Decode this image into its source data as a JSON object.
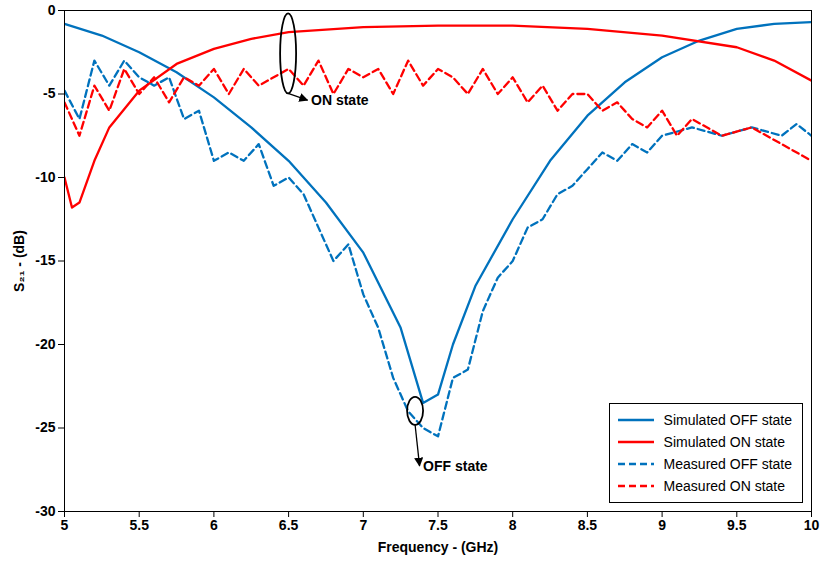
{
  "chart_data": {
    "type": "line",
    "xlabel": "Frequency - (GHz)",
    "ylabel": "S₂₁ - (dB)",
    "xlim": [
      5,
      10
    ],
    "xticks": [
      5,
      5.5,
      6,
      6.5,
      7,
      7.5,
      8,
      8.5,
      9,
      9.5,
      10
    ],
    "ylim": [
      -30,
      0
    ],
    "yticks": [
      -30,
      -25,
      -20,
      -15,
      -10,
      -5,
      0
    ],
    "grid": false,
    "legend": "lower right",
    "series": [
      {
        "name": "Simulated OFF state",
        "color": "#0072bd",
        "line_style": "solid",
        "x": [
          5,
          5.25,
          5.5,
          5.75,
          6,
          6.25,
          6.5,
          6.75,
          7,
          7.25,
          7.4,
          7.5,
          7.6,
          7.75,
          8,
          8.25,
          8.5,
          8.75,
          9,
          9.25,
          9.5,
          9.75,
          10
        ],
        "values": [
          -0.8,
          -1.5,
          -2.5,
          -3.7,
          -5.2,
          -7,
          -9,
          -11.5,
          -14.5,
          -19,
          -23.5,
          -23,
          -20,
          -16.5,
          -12.5,
          -9,
          -6.3,
          -4.3,
          -2.8,
          -1.8,
          -1.1,
          -0.8,
          -0.7
        ]
      },
      {
        "name": "Simulated ON state",
        "color": "#ff0000",
        "line_style": "solid",
        "x": [
          5,
          5.05,
          5.1,
          5.2,
          5.3,
          5.5,
          5.75,
          6,
          6.25,
          6.5,
          7,
          7.5,
          8,
          8.5,
          9,
          9.5,
          9.75,
          10
        ],
        "values": [
          -10,
          -11.8,
          -11.5,
          -9,
          -7,
          -4.8,
          -3.2,
          -2.3,
          -1.7,
          -1.3,
          -1,
          -0.9,
          -0.9,
          -1.1,
          -1.5,
          -2.2,
          -3,
          -4.2
        ]
      },
      {
        "name": "Measured OFF state",
        "color": "#0072bd",
        "line_style": "dashed",
        "x": [
          5,
          5.1,
          5.2,
          5.3,
          5.4,
          5.5,
          5.6,
          5.7,
          5.8,
          5.9,
          6,
          6.1,
          6.2,
          6.3,
          6.4,
          6.5,
          6.6,
          6.7,
          6.8,
          6.9,
          7,
          7.1,
          7.2,
          7.3,
          7.4,
          7.5,
          7.6,
          7.7,
          7.8,
          7.9,
          8,
          8.1,
          8.2,
          8.3,
          8.4,
          8.5,
          8.6,
          8.7,
          8.8,
          8.9,
          9,
          9.2,
          9.4,
          9.6,
          9.8,
          9.9,
          10
        ],
        "values": [
          -4.8,
          -6.5,
          -3,
          -4.5,
          -3,
          -4,
          -4.5,
          -4,
          -6.5,
          -6,
          -9,
          -8.5,
          -9,
          -8,
          -10.5,
          -10,
          -11,
          -13,
          -15,
          -14,
          -17,
          -19,
          -22,
          -24,
          -25,
          -25.5,
          -22,
          -21.5,
          -18,
          -16,
          -15,
          -13,
          -12.5,
          -11,
          -10.5,
          -9.5,
          -8.5,
          -9,
          -8,
          -8.5,
          -7.5,
          -7,
          -7.5,
          -7,
          -7.5,
          -6.8,
          -7.5
        ]
      },
      {
        "name": "Measured ON state",
        "color": "#ff0000",
        "line_style": "dashed",
        "x": [
          5,
          5.1,
          5.2,
          5.3,
          5.4,
          5.5,
          5.6,
          5.7,
          5.8,
          5.9,
          6,
          6.1,
          6.2,
          6.3,
          6.4,
          6.5,
          6.6,
          6.7,
          6.8,
          6.9,
          7,
          7.1,
          7.2,
          7.3,
          7.4,
          7.5,
          7.6,
          7.7,
          7.8,
          7.9,
          8,
          8.1,
          8.2,
          8.3,
          8.4,
          8.5,
          8.6,
          8.7,
          8.8,
          8.9,
          9,
          9.1,
          9.2,
          9.4,
          9.6,
          9.8,
          10
        ],
        "values": [
          -5.5,
          -7.5,
          -4.5,
          -6,
          -3.5,
          -5,
          -4,
          -5.5,
          -4,
          -4.5,
          -3.5,
          -5,
          -3.5,
          -4.5,
          -4,
          -3.5,
          -4.5,
          -3,
          -5,
          -3.5,
          -4,
          -3.5,
          -5,
          -3,
          -4.5,
          -3.5,
          -4,
          -5,
          -3.5,
          -5,
          -4,
          -5.5,
          -4.5,
          -6,
          -5,
          -5,
          -6,
          -5.5,
          -6.5,
          -7,
          -6,
          -7.5,
          -6.5,
          -7.5,
          -7,
          -8,
          -9
        ]
      }
    ],
    "annotations": [
      {
        "text": "ON state",
        "x": 6.5,
        "y": -2.6,
        "text_x": 6.65,
        "text_y": -5.4
      },
      {
        "text": "OFF state",
        "x": 7.35,
        "y": -24,
        "text_x": 7.4,
        "text_y": -27.3
      }
    ]
  }
}
